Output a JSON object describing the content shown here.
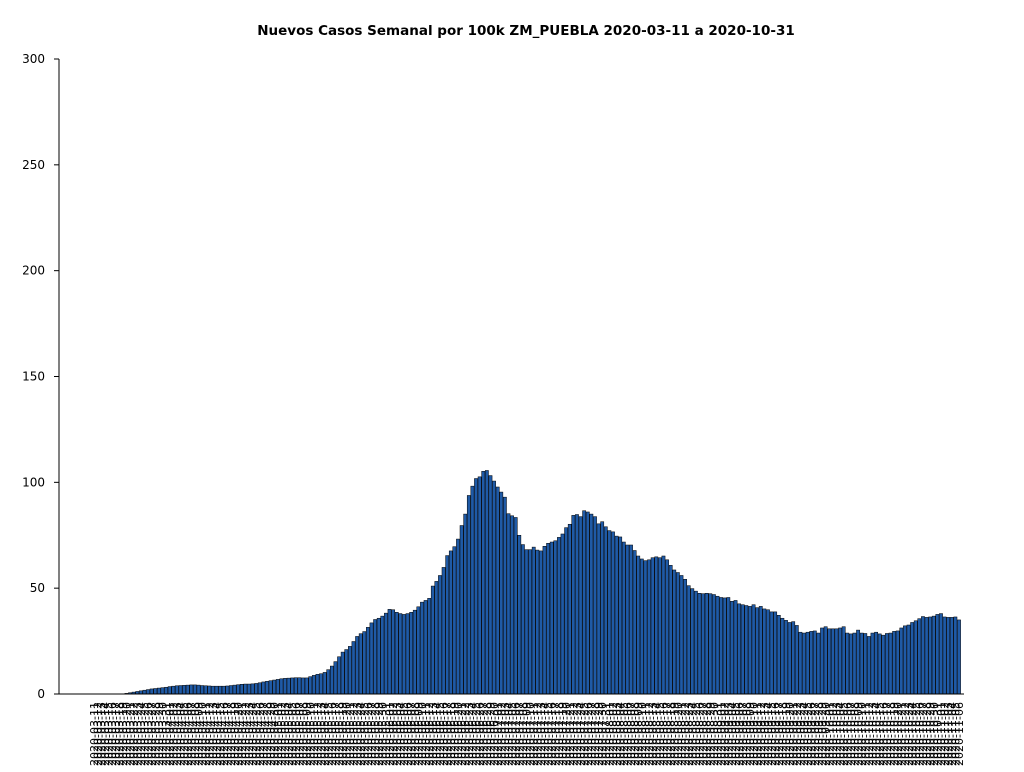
{
  "chart_data": {
    "type": "bar",
    "title": "Nuevos Casos Semanal por 100k ZM_PUEBLA 2020-03-11 a 2020-10-31",
    "xlabel": "",
    "ylabel": "",
    "ylim": [
      0,
      300
    ],
    "yticks": [
      0,
      50,
      100,
      150,
      200,
      250,
      300
    ],
    "grid": false,
    "legend": "none",
    "bar_color": "#1f5aa6",
    "bar_edge_color": "#000000",
    "x_start": "2020-03-11",
    "x_end": "2020-10-31",
    "values": [
      0,
      0,
      0,
      0,
      0,
      0,
      0,
      0,
      0,
      0.3,
      0.6,
      0.9,
      1.2,
      1.5,
      1.8,
      2.1,
      2.4,
      2.6,
      2.8,
      3.0,
      3.2,
      3.5,
      3.7,
      3.9,
      4.0,
      4.1,
      4.2,
      4.3,
      4.3,
      4.2,
      4.0,
      3.9,
      3.8,
      3.7,
      3.7,
      3.7,
      3.7,
      3.8,
      4.0,
      4.2,
      4.4,
      4.6,
      4.7,
      4.7,
      4.8,
      5.0,
      5.3,
      5.7,
      6.0,
      6.3,
      6.6,
      6.9,
      7.2,
      7.4,
      7.5,
      7.6,
      7.7,
      7.7,
      7.6,
      7.6,
      8.2,
      8.8,
      9.3,
      9.6,
      10.2,
      11.5,
      13.2,
      15.3,
      17.6,
      19.8,
      21.0,
      22.5,
      24.8,
      27.2,
      28.5,
      29.5,
      31.5,
      33.6,
      35.2,
      35.8,
      36.8,
      38.2,
      40.0,
      39.8,
      38.6,
      38.0,
      37.6,
      38.0,
      38.6,
      39.6,
      41.2,
      43.4,
      44.2,
      45.2,
      51.0,
      53.2,
      56.0,
      59.8,
      65.4,
      67.6,
      69.6,
      73.2,
      79.6,
      85.0,
      93.8,
      98.2,
      101.8,
      102.6,
      105.2,
      105.6,
      103.2,
      100.6,
      97.8,
      95.4,
      93.0,
      85.2,
      84.2,
      83.4,
      75.0,
      70.6,
      68.2,
      68.2,
      69.4,
      68.0,
      67.6,
      69.8,
      71.2,
      71.8,
      72.4,
      74.0,
      75.6,
      78.6,
      80.2,
      84.4,
      84.8,
      83.8,
      86.6,
      86.0,
      85.0,
      83.8,
      80.4,
      81.4,
      79.0,
      77.2,
      76.6,
      74.6,
      74.2,
      71.8,
      70.4,
      70.4,
      67.8,
      65.2,
      63.8,
      63.0,
      63.4,
      64.4,
      64.8,
      64.4,
      65.2,
      63.4,
      60.8,
      58.6,
      57.4,
      56.0,
      54.2,
      51.2,
      49.8,
      48.6,
      47.6,
      47.4,
      47.6,
      47.4,
      47.0,
      46.2,
      45.6,
      45.4,
      45.6,
      43.8,
      44.2,
      42.6,
      42.2,
      41.8,
      41.4,
      42.2,
      40.8,
      41.4,
      40.2,
      39.8,
      38.8,
      38.8,
      37.2,
      35.8,
      34.8,
      33.8,
      34.2,
      32.4,
      29.2,
      28.8,
      29.2,
      29.6,
      29.8,
      28.8,
      31.2,
      31.8,
      30.8,
      30.8,
      30.8,
      31.2,
      31.8,
      28.8,
      28.4,
      28.8,
      30.2,
      28.8,
      28.6,
      27.2,
      28.8,
      29.2,
      28.4,
      27.8,
      28.6,
      28.8,
      29.6,
      29.8,
      31.2,
      32.2,
      32.6,
      33.8,
      34.6,
      35.6,
      36.6,
      36.2,
      36.4,
      36.8,
      37.6,
      38.0,
      36.4,
      36.2,
      36.2,
      36.4,
      35.0
    ]
  }
}
